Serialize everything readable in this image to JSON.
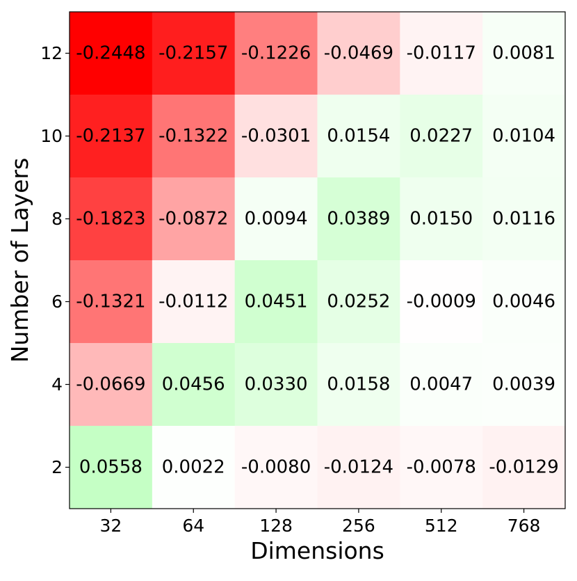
{
  "chart_data": {
    "type": "heatmap",
    "title": "",
    "xlabel": "Dimensions",
    "ylabel": "Number of Layers",
    "x_categories": [
      "32",
      "64",
      "128",
      "256",
      "512",
      "768"
    ],
    "y_categories": [
      "12",
      "10",
      "8",
      "6",
      "4",
      "2"
    ],
    "values": [
      [
        -0.2448,
        -0.2157,
        -0.1226,
        -0.0469,
        -0.0117,
        0.0081
      ],
      [
        -0.2137,
        -0.1322,
        -0.0301,
        0.0154,
        0.0227,
        0.0104
      ],
      [
        -0.1823,
        -0.0872,
        0.0094,
        0.0389,
        0.015,
        0.0116
      ],
      [
        -0.1321,
        -0.0112,
        0.0451,
        0.0252,
        -0.0009,
        0.0046
      ],
      [
        -0.0669,
        0.0456,
        0.033,
        0.0158,
        0.0047,
        0.0039
      ],
      [
        0.0558,
        0.0022,
        -0.008,
        -0.0124,
        -0.0078,
        -0.0129
      ]
    ],
    "cell_labels": [
      [
        "-0.2448",
        "-0.2157",
        "-0.1226",
        "-0.0469",
        "-0.0117",
        "0.0081"
      ],
      [
        "-0.2137",
        "-0.1322",
        "-0.0301",
        "0.0154",
        "0.0227",
        "0.0104"
      ],
      [
        "-0.1823",
        "-0.0872",
        "0.0094",
        "0.0389",
        "0.0150",
        "0.0116"
      ],
      [
        "-0.1321",
        "-0.0112",
        "0.0451",
        "0.0252",
        "-0.0009",
        "0.0046"
      ],
      [
        "-0.0669",
        "0.0456",
        "0.0330",
        "0.0158",
        "0.0047",
        "0.0039"
      ],
      [
        "0.0558",
        "0.0022",
        "-0.0080",
        "-0.0124",
        "-0.0078",
        "-0.0129"
      ]
    ],
    "color_scale": {
      "negative_color": "#ff0000",
      "neutral_color": "#ffffff",
      "positive_color": "#00ff00",
      "negative_extreme": -0.2448,
      "positive_extreme": 0.2448
    },
    "grid": false,
    "legend": "none"
  }
}
